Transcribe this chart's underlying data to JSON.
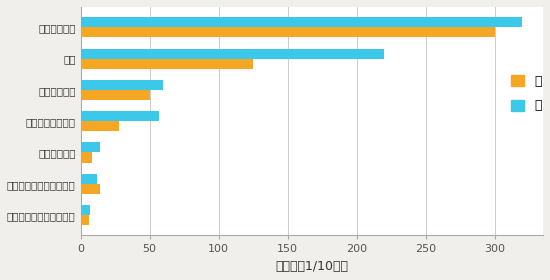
{
  "categories": [
    "循环系统疾病",
    "肿瘤",
    "呼吸系统疾病",
    "疾病和死亡的外因",
    "消化系统疾病",
    "内分泌、营养和代谢疾病",
    "神经系统和精神障碍疾病"
  ],
  "female_values": [
    300,
    125,
    50,
    28,
    8,
    14,
    6
  ],
  "male_values": [
    320,
    220,
    60,
    57,
    14,
    12,
    7
  ],
  "female_color": "#F5A623",
  "male_color": "#3CC8E8",
  "xlabel": "死亡率（1/10万）",
  "xlim": [
    0,
    335
  ],
  "xticks": [
    0,
    50,
    100,
    150,
    200,
    250,
    300
  ],
  "legend_female": "女",
  "legend_male": "男",
  "bar_height": 0.32,
  "background_color": "#f0efeb",
  "plot_bg_color": "#ffffff",
  "grid_color": "#cccccc"
}
